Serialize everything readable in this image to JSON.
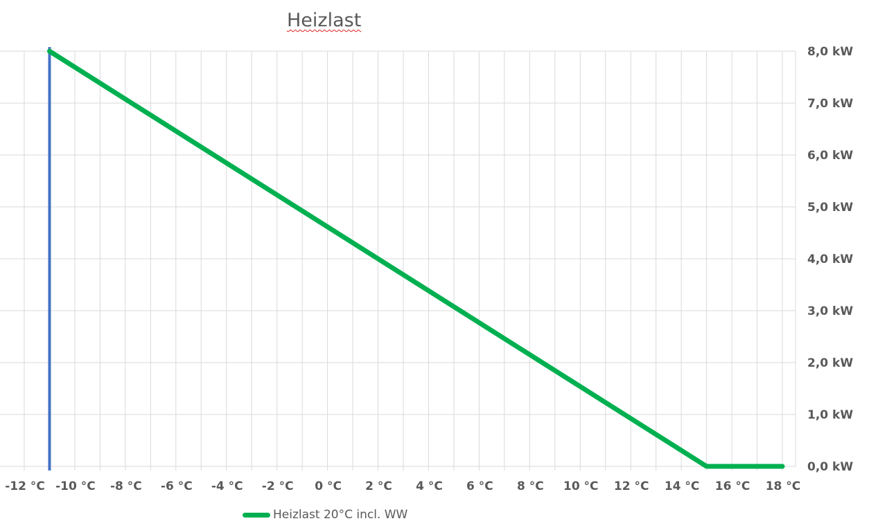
{
  "chart_data": {
    "type": "line",
    "title": "Heizlast",
    "xlabel": "",
    "ylabel": "",
    "x_ticks": [
      "-12 °C",
      "-10 °C",
      "-8 °C",
      "-6 °C",
      "-4 °C",
      "-2 °C",
      "0 °C",
      "2 °C",
      "4 °C",
      "6 °C",
      "8 °C",
      "10 °C",
      "12 °C",
      "14 °C",
      "16 °C",
      "18 °C"
    ],
    "y_ticks": [
      "0,0 kW",
      "1,0 kW",
      "2,0 kW",
      "3,0 kW",
      "4,0 kW",
      "5,0 kW",
      "6,0 kW",
      "7,0 kW",
      "8,0 kW"
    ],
    "xlim": [
      -12,
      18
    ],
    "ylim": [
      0,
      8
    ],
    "grid": true,
    "y_axis_side": "right",
    "legend_position": "bottom",
    "reference_line": {
      "x": -11,
      "color": "#4472c4"
    },
    "series": [
      {
        "name": "Heizlast 20°C incl. WW",
        "color": "#00b050",
        "x": [
          -11,
          15,
          18
        ],
        "y": [
          8.0,
          0.0,
          0.0
        ]
      }
    ]
  }
}
